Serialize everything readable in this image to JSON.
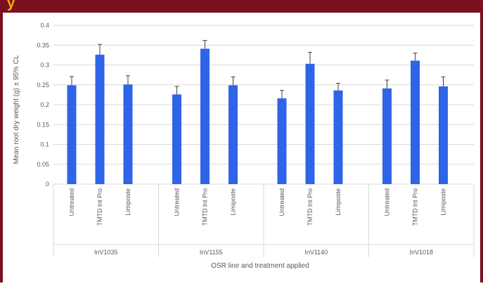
{
  "header": {
    "title_fragment": "y"
  },
  "colors": {
    "header_bg": "#7a1020",
    "header_text": "#f0b400",
    "bar": "#2f64e8",
    "grid": "#d9d9d9",
    "text": "#595959"
  },
  "chart_data": {
    "type": "bar",
    "ylabel": "Mean root dry weight (g) ± 95% CL",
    "xlabel": "OSR line and treatment applied",
    "ylim": [
      0,
      0.4
    ],
    "yticks": [
      0,
      0.05,
      0.1,
      0.15,
      0.2,
      0.25,
      0.3,
      0.35,
      0.4
    ],
    "ytick_labels": [
      "0",
      "0.05",
      "0.1",
      "0.15",
      "0.2",
      "0.25",
      "0.3",
      "0.35",
      "0.4"
    ],
    "grid": true,
    "legend": "none",
    "groups": [
      {
        "name": "InV1035",
        "categories": [
          "Untreated",
          "TMTD lnt Pro",
          "Limiposte"
        ],
        "values": [
          0.249,
          0.326,
          0.251
        ],
        "errors": [
          0.022,
          0.026,
          0.022
        ]
      },
      {
        "name": "InV1155",
        "categories": [
          "Untreated",
          "TMTD lnt Pro",
          "Limiposte"
        ],
        "values": [
          0.226,
          0.341,
          0.249
        ],
        "errors": [
          0.02,
          0.021,
          0.021
        ]
      },
      {
        "name": "InV1140",
        "categories": [
          "Untreated",
          "TMTD lnt Pro",
          "Limiposte"
        ],
        "values": [
          0.216,
          0.303,
          0.236
        ],
        "errors": [
          0.02,
          0.029,
          0.018
        ]
      },
      {
        "name": "InV1018",
        "categories": [
          "Untreated",
          "TMTD lnt Pro",
          "Limiposte"
        ],
        "values": [
          0.241,
          0.311,
          0.246
        ],
        "errors": [
          0.021,
          0.019,
          0.024
        ]
      }
    ]
  }
}
